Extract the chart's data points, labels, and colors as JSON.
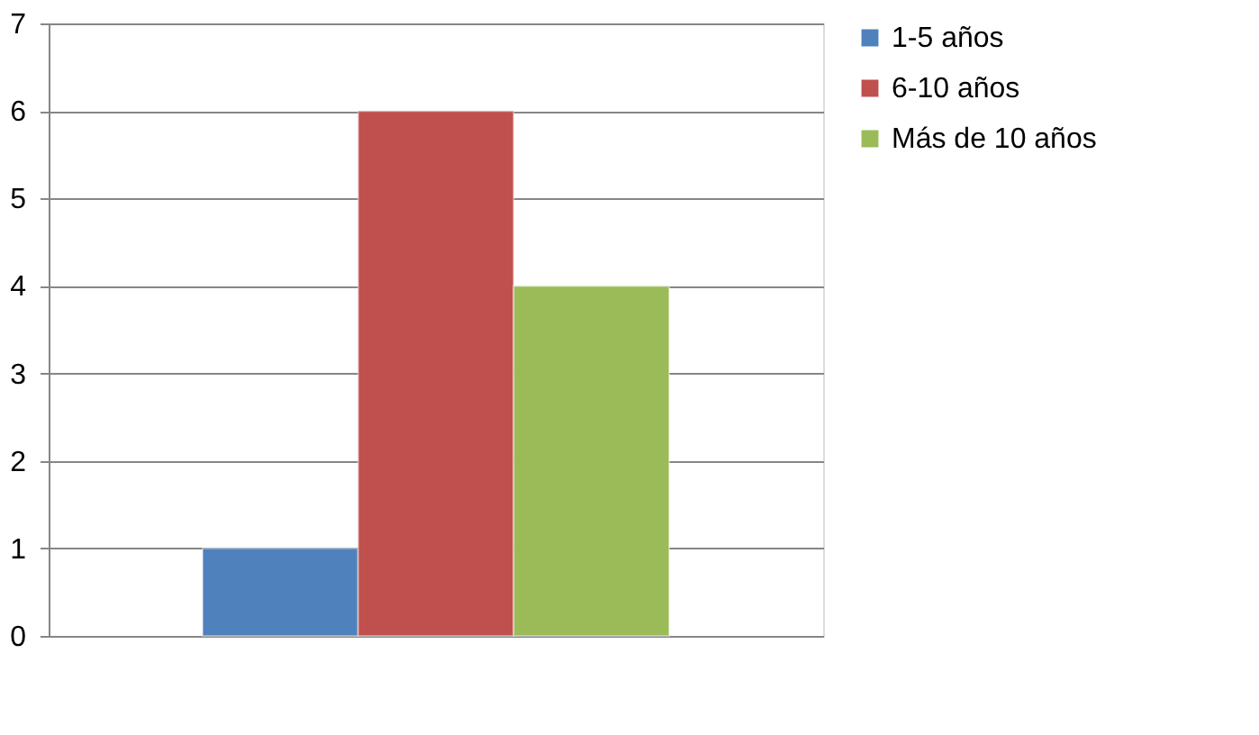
{
  "chart_data": {
    "type": "bar",
    "categories": [
      null
    ],
    "series": [
      {
        "name": "1-5 años",
        "color": "#4f81bd",
        "values": [
          1
        ]
      },
      {
        "name": "6-10 años",
        "color": "#c0504d",
        "values": [
          6
        ]
      },
      {
        "name": "Más de 10 años",
        "color": "#9bbb59",
        "values": [
          4
        ]
      }
    ],
    "ylim": [
      0,
      7
    ],
    "yticks": [
      0,
      1,
      2,
      3,
      4,
      5,
      6,
      7
    ],
    "grid": "y",
    "legend": "right",
    "tick_labels": "y"
  }
}
